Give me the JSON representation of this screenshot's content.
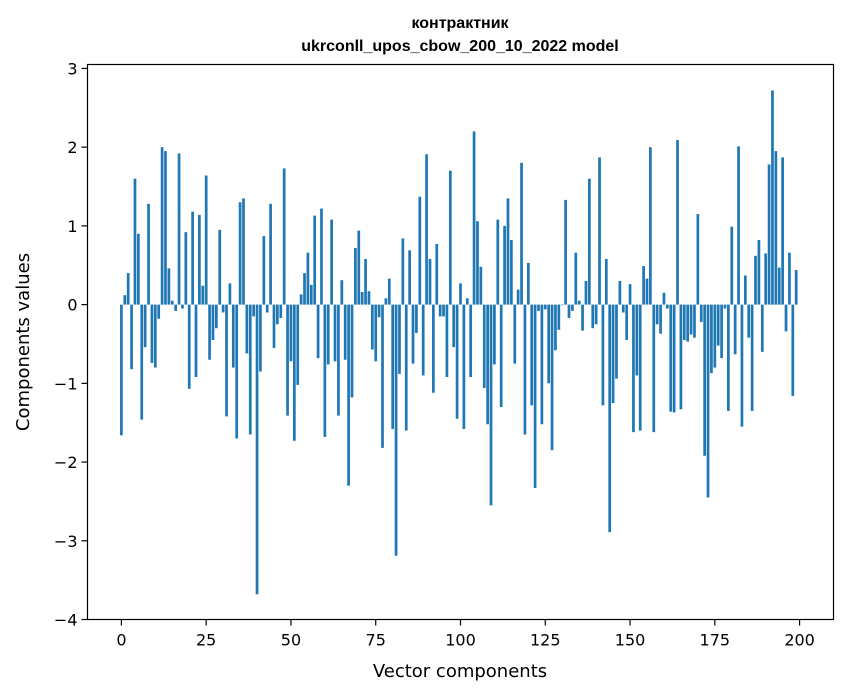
{
  "chart_data": {
    "type": "bar",
    "title_line1": "контрактник",
    "title_line2": "ukrconll_upos_cbow_200_10_2022 model",
    "xlabel": "Vector components",
    "ylabel": "Components values",
    "xlim": [
      -10,
      210
    ],
    "ylim": [
      -4,
      3.05
    ],
    "xticks": [
      0,
      25,
      50,
      75,
      100,
      125,
      150,
      175,
      200
    ],
    "yticks": [
      -4,
      -3,
      -2,
      -1,
      0,
      1,
      2,
      3
    ],
    "ytick_labels": [
      "−4",
      "−3",
      "−2",
      "−1",
      "0",
      "1",
      "2",
      "3"
    ],
    "grid": false,
    "color": "#1f77b4",
    "values": [
      -1.66,
      0.12,
      0.4,
      -0.82,
      1.6,
      0.9,
      -1.46,
      -0.54,
      1.28,
      -0.74,
      -0.8,
      -0.18,
      2.0,
      1.95,
      0.46,
      0.05,
      -0.08,
      1.92,
      -0.05,
      0.92,
      -1.07,
      1.18,
      -0.92,
      1.14,
      0.24,
      1.64,
      -0.7,
      -0.45,
      -0.3,
      0.95,
      -0.1,
      -1.42,
      0.27,
      -0.8,
      -1.7,
      1.3,
      1.35,
      -0.62,
      -1.65,
      -0.15,
      -3.68,
      -0.85,
      0.87,
      -0.1,
      1.28,
      -0.55,
      -0.25,
      -0.17,
      1.73,
      -1.41,
      -0.72,
      -1.73,
      -1.02,
      0.13,
      0.4,
      0.66,
      0.25,
      1.13,
      -0.68,
      1.22,
      -1.68,
      -0.76,
      1.08,
      -0.72,
      -1.41,
      0.31,
      -0.7,
      -2.3,
      -1.18,
      0.72,
      0.94,
      0.16,
      0.58,
      0.17,
      -0.57,
      -0.72,
      -0.16,
      -1.82,
      0.08,
      0.33,
      -1.58,
      -3.19,
      -0.88,
      0.84,
      -1.6,
      0.69,
      -0.75,
      -0.36,
      1.37,
      -0.9,
      1.91,
      0.58,
      -1.12,
      0.77,
      -0.15,
      -0.15,
      -0.92,
      1.7,
      -0.54,
      -1.45,
      0.27,
      -1.58,
      0.08,
      -0.92,
      2.2,
      1.06,
      0.48,
      -1.06,
      -1.52,
      -2.55,
      -0.76,
      1.08,
      -1.3,
      1.0,
      1.35,
      0.82,
      -0.75,
      0.19,
      1.8,
      -1.65,
      0.53,
      -1.28,
      -2.33,
      -0.08,
      -1.52,
      -0.06,
      -1.0,
      -1.85,
      -0.58,
      -0.32,
      0.0,
      1.33,
      -0.17,
      -0.08,
      0.66,
      0.05,
      -0.33,
      0.3,
      1.6,
      -0.3,
      -0.25,
      1.87,
      -1.28,
      0.58,
      -2.89,
      -1.25,
      -0.94,
      0.3,
      -0.1,
      -0.45,
      0.26,
      -1.62,
      -0.9,
      -1.6,
      0.49,
      0.33,
      2.0,
      -1.62,
      -0.25,
      -0.37,
      0.15,
      -0.05,
      -1.36,
      -1.37,
      2.09,
      -1.33,
      -0.45,
      -0.47,
      -0.38,
      -0.42,
      1.15,
      -0.22,
      -1.92,
      -2.45,
      -0.87,
      -0.8,
      -0.52,
      -0.68,
      -0.05,
      -1.35,
      0.99,
      -0.63,
      2.01,
      -1.55,
      0.37,
      -0.42,
      -1.35,
      0.62,
      0.82,
      -0.6,
      0.65,
      1.78,
      2.72,
      1.95,
      0.47,
      1.87,
      -0.34,
      0.66,
      -1.16,
      0.44
    ]
  }
}
